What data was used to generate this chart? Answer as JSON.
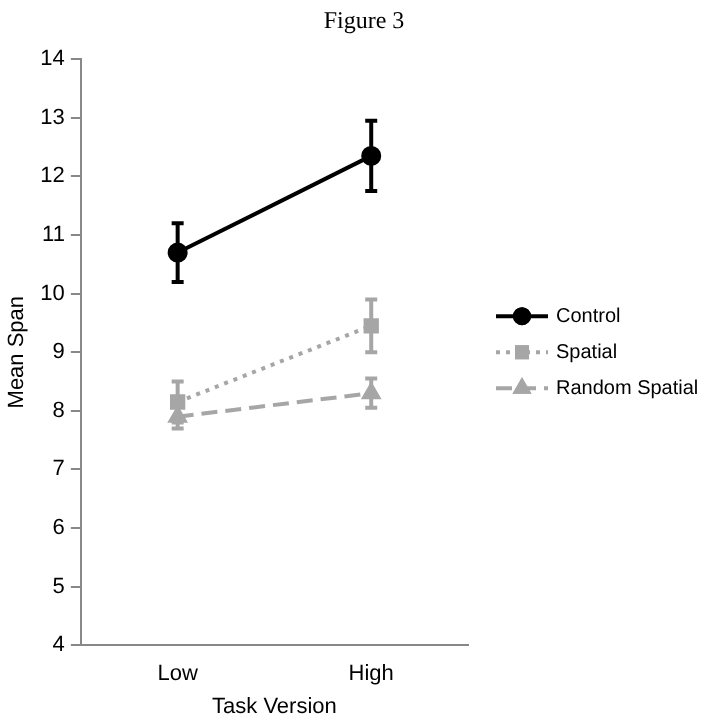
{
  "chart_data": {
    "type": "line",
    "title": "Figure 3",
    "xlabel": "Task Version",
    "ylabel": "Mean Span",
    "categories": [
      "Low",
      "High"
    ],
    "series": [
      {
        "name": "Control",
        "color": "#000000",
        "values": [
          10.7,
          12.35
        ],
        "errors": [
          0.5,
          0.6
        ],
        "marker": "circle",
        "line_style": "solid"
      },
      {
        "name": "Spatial",
        "color": "#a6a6a6",
        "values": [
          8.15,
          9.45
        ],
        "errors": [
          0.35,
          0.45
        ],
        "marker": "square",
        "line_style": "dotted"
      },
      {
        "name": "Random Spatial",
        "color": "#a6a6a6",
        "values": [
          7.9,
          8.3
        ],
        "errors": [
          0.2,
          0.25
        ],
        "marker": "triangle",
        "line_style": "dashed"
      }
    ],
    "ylim": [
      4,
      14
    ],
    "yticks": [
      4,
      5,
      6,
      7,
      8,
      9,
      10,
      11,
      12,
      13,
      14
    ],
    "grid": false,
    "legend": "right"
  }
}
